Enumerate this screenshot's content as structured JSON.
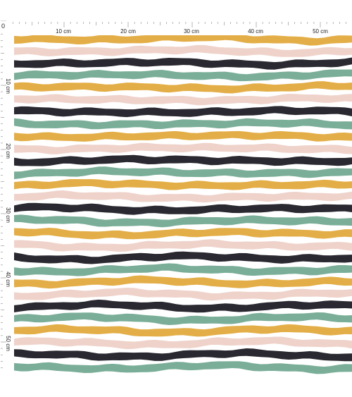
{
  "ruler": {
    "origin_label": "0",
    "top_labels": [
      "10 cm",
      "20 cm",
      "30 cm",
      "40 cm",
      "50 cm"
    ],
    "left_labels": [
      "10 cm",
      "20 cm",
      "30 cm",
      "40 cm",
      "50 cm"
    ]
  },
  "pattern": {
    "name": "wavy stripes",
    "colors": {
      "mustard": "#E3AE47",
      "blush": "#EFD3CB",
      "charcoal": "#2A2830",
      "sage": "#7AAE98",
      "background": "#FFFFFF"
    },
    "sequence": [
      "mustard",
      "blush",
      "charcoal",
      "sage"
    ]
  }
}
